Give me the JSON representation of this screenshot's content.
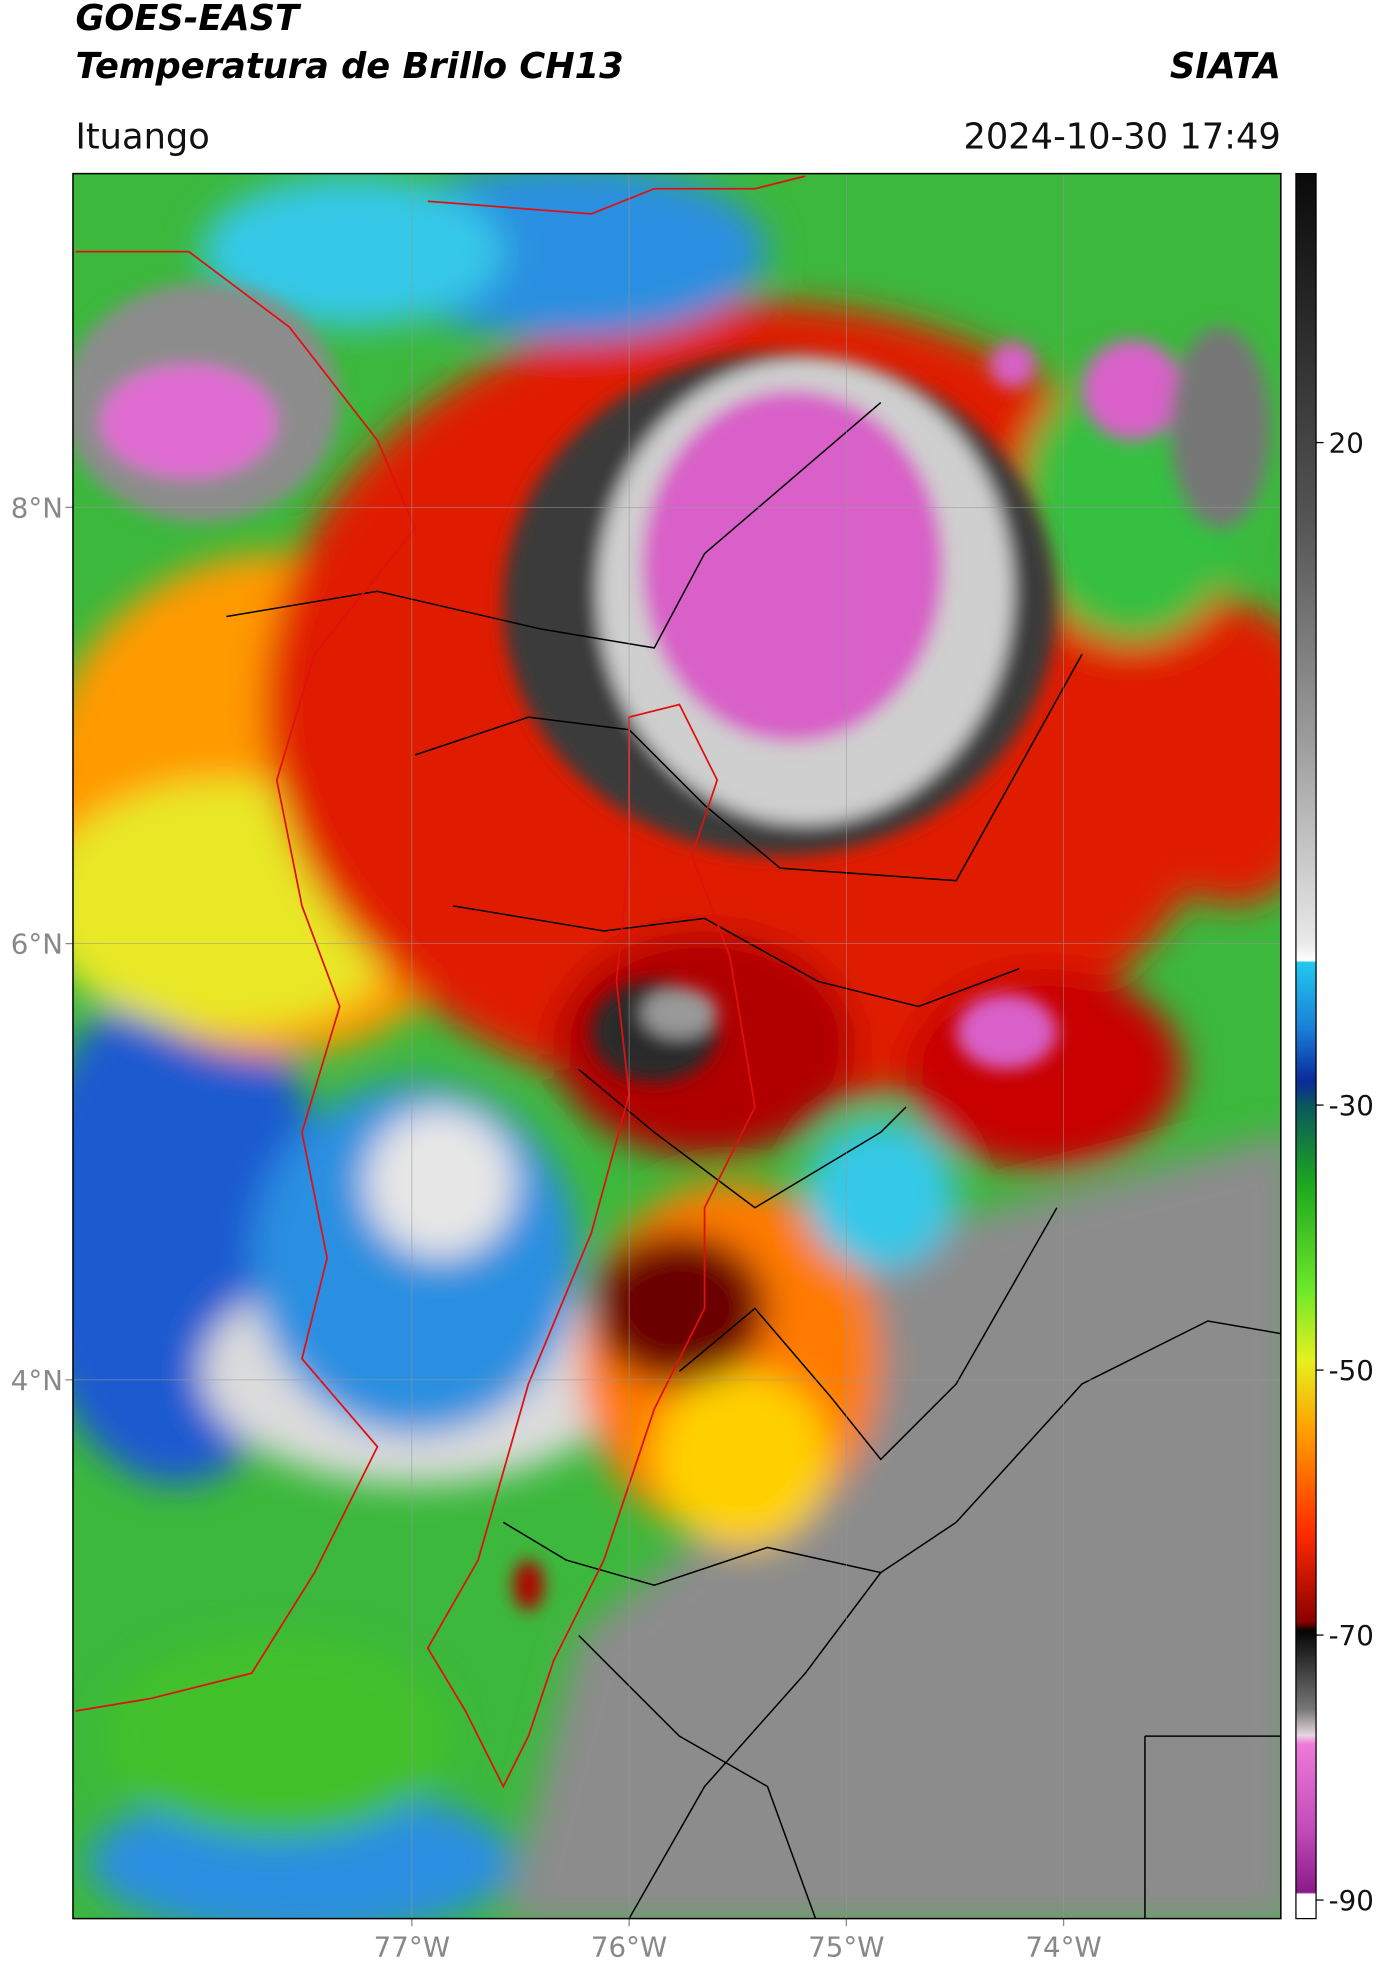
{
  "header": {
    "satellite": "GOES-EAST",
    "product": "Temperatura de Brillo CH13",
    "agency": "SIATA",
    "location": "Ituango",
    "datetime": "2024-10-30 17:49"
  },
  "map": {
    "xlim": [
      -78.56,
      -73.0
    ],
    "ylim": [
      1.53,
      9.53
    ],
    "xticks": [
      {
        "value": -77,
        "label": "77°W"
      },
      {
        "value": -76,
        "label": "76°W"
      },
      {
        "value": -75,
        "label": "75°W"
      },
      {
        "value": -74,
        "label": "74°W"
      }
    ],
    "yticks": [
      {
        "value": 8,
        "label": "8°N"
      },
      {
        "value": 6,
        "label": "6°N"
      },
      {
        "value": 4,
        "label": "4°N"
      }
    ],
    "grid": true
  },
  "colorbar": {
    "lim": [
      -91.4,
      40.3
    ],
    "ticks": [
      20,
      -30,
      -50,
      -70,
      -90
    ]
  }
}
